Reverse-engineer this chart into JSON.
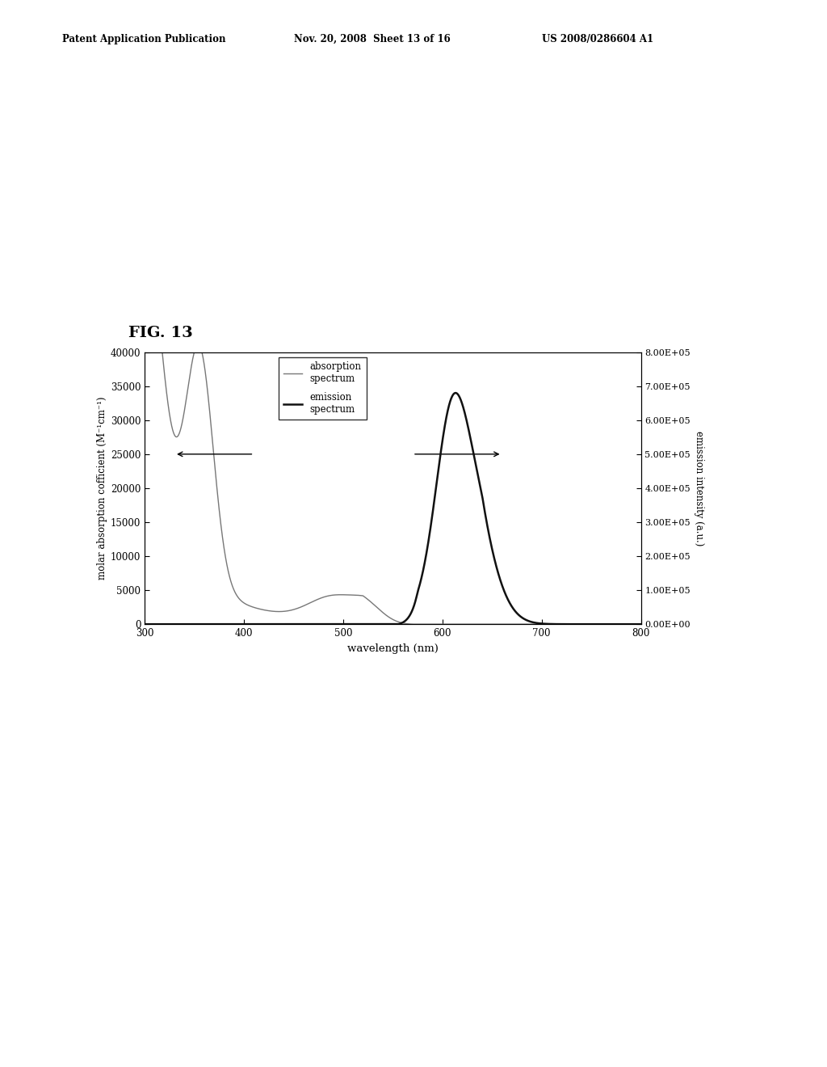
{
  "title": "FIG. 13",
  "xlabel": "wavelength (nm)",
  "ylabel_left": "molar absorption cofficient (M⁻¹cm⁻¹)",
  "ylabel_right": "emission intensity (a.u.)",
  "xlim": [
    300,
    800
  ],
  "ylim_left": [
    0,
    40000
  ],
  "ylim_right": [
    0,
    800000.0
  ],
  "xticks": [
    300,
    400,
    500,
    600,
    700,
    800
  ],
  "yticks_left": [
    0,
    5000,
    10000,
    15000,
    20000,
    25000,
    30000,
    35000,
    40000
  ],
  "yticks_right": [
    0.0,
    100000.0,
    200000.0,
    300000.0,
    400000.0,
    500000.0,
    600000.0,
    700000.0,
    800000.0
  ],
  "ytick_labels_right": [
    "0.00E+00",
    "1.00E+05",
    "2.00E+05",
    "3.00E+05",
    "4.00E+05",
    "5.00E+05",
    "6.00E+05",
    "7.00E+05",
    "8.00E+05"
  ],
  "absorption_color": "#777777",
  "emission_color": "#111111",
  "legend_absorption": "absorption\nspectrum",
  "legend_emission": "emission\nspectrum",
  "header_left": "Patent Application Publication",
  "header_mid": "Nov. 20, 2008  Sheet 13 of 16",
  "header_right": "US 2008/0286604 A1",
  "background_color": "#ffffff"
}
